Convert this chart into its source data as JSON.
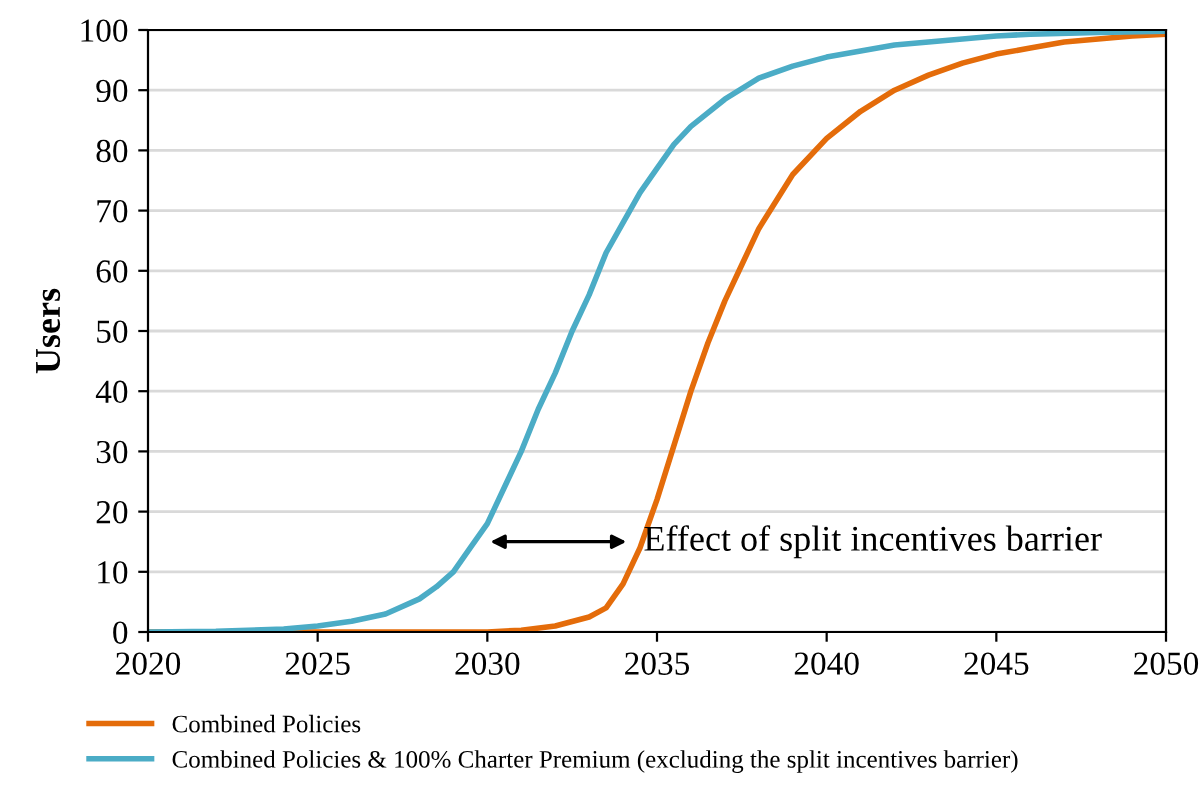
{
  "chart_data": {
    "type": "line",
    "ylabel": "Users",
    "xlim": [
      2020,
      2050
    ],
    "xticks": [
      2020,
      2025,
      2030,
      2035,
      2040,
      2045,
      2050
    ],
    "ylim": [
      0,
      100
    ],
    "yticks": [
      0,
      10,
      20,
      30,
      40,
      50,
      60,
      70,
      80,
      90,
      100
    ],
    "grid": "y",
    "legend": "bottom",
    "line_style": "solid",
    "marker": "none",
    "series": [
      {
        "name": "Combined Policies",
        "color": "#e46c0a",
        "x": [
          2020,
          2025,
          2030,
          2031,
          2032,
          2033,
          2033.5,
          2034,
          2034.5,
          2035,
          2035.5,
          2036,
          2036.5,
          2037,
          2037.5,
          2038,
          2039,
          2040,
          2041,
          2042,
          2043,
          2044,
          2045,
          2046,
          2047,
          2048,
          2049,
          2050
        ],
        "values": [
          0,
          0,
          0,
          0.3,
          1,
          2.5,
          4,
          8,
          14,
          22,
          31,
          40,
          48,
          55,
          61,
          67,
          76,
          82,
          86.5,
          90,
          92.5,
          94.5,
          96,
          97,
          98,
          98.5,
          99,
          99.3
        ]
      },
      {
        "name": "Combined Policies & 100% Charter Premium (excluding the split incentives barrier)",
        "color": "#4bacc6",
        "x": [
          2020,
          2022,
          2024,
          2025,
          2026,
          2027,
          2028,
          2028.5,
          2029,
          2029.5,
          2030,
          2030.5,
          2031,
          2031.5,
          2032,
          2032.5,
          2033,
          2033.5,
          2034,
          2034.5,
          2035,
          2035.5,
          2036,
          2037,
          2038,
          2039,
          2040,
          2041,
          2042,
          2043,
          2044,
          2045,
          2046,
          2048,
          2050
        ],
        "values": [
          0,
          0.1,
          0.5,
          1,
          1.8,
          3,
          5.5,
          7.5,
          10,
          14,
          18,
          24,
          30,
          37,
          43,
          50,
          56,
          63,
          68,
          73,
          77,
          81,
          84,
          88.5,
          92,
          94,
          95.5,
          96.5,
          97.5,
          98,
          98.5,
          99,
          99.3,
          99.6,
          99.8
        ]
      }
    ],
    "annotations": [
      {
        "text": "Effect of split incentives barrier",
        "x": 2034.6,
        "y": 15
      }
    ]
  }
}
